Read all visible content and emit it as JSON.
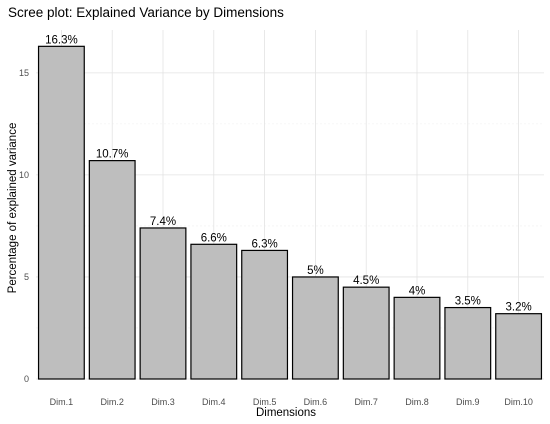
{
  "chart_data": {
    "type": "bar",
    "title": "Scree plot: Explained Variance by Dimensions",
    "xlabel": "Dimensions",
    "ylabel": "Percentage of explained variance",
    "categories": [
      "Dim.1",
      "Dim.2",
      "Dim.3",
      "Dim.4",
      "Dim.5",
      "Dim.6",
      "Dim.7",
      "Dim.8",
      "Dim.9",
      "Dim.10"
    ],
    "values": [
      16.3,
      10.7,
      7.4,
      6.6,
      6.3,
      5.0,
      4.5,
      4.0,
      3.5,
      3.2
    ],
    "value_labels": [
      "16.3%",
      "10.7%",
      "7.4%",
      "6.6%",
      "6.3%",
      "5%",
      "4.5%",
      "4%",
      "3.5%",
      "3.2%"
    ],
    "yticks": [
      0,
      5,
      10,
      15
    ],
    "ytick_labels": [
      "0",
      "5",
      "10",
      "15"
    ],
    "ylim": [
      0,
      17.1
    ],
    "grid": true,
    "legend": "none",
    "colors": {
      "bar_fill": "#bebebe",
      "bar_stroke": "#000000"
    }
  }
}
